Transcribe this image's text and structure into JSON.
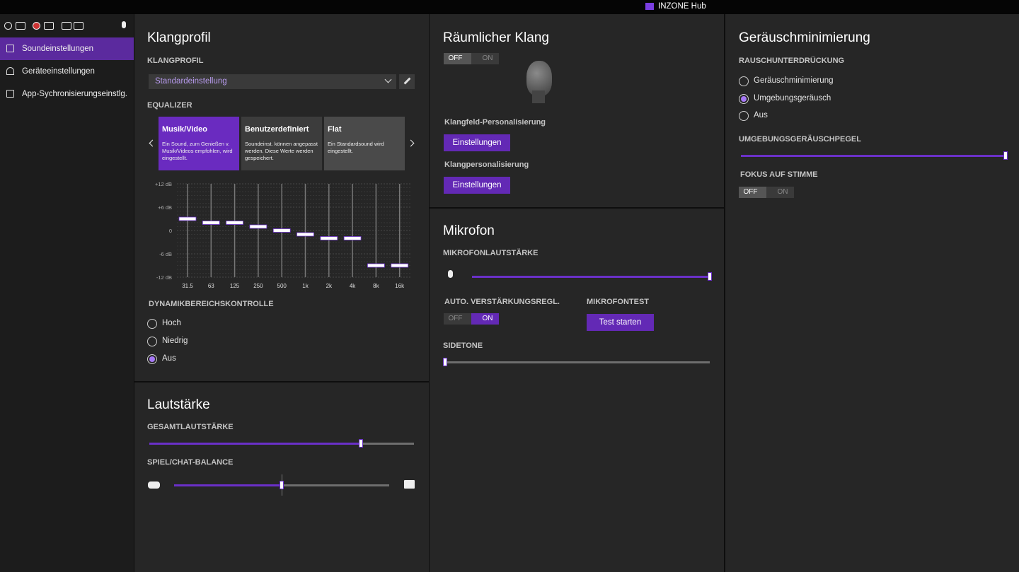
{
  "title_bar": {
    "app_name": "INZONE Hub"
  },
  "sidebar": {
    "items": [
      "Soundeinstellungen",
      "Geräteeinstellungen",
      "App-Sychronisierungseinstlg."
    ],
    "active": 0
  },
  "sound_profile": {
    "title": "Klangprofil",
    "profile_label": "KLANGPROFIL",
    "profile_value": "Standardeinstellung",
    "equalizer_label": "EQUALIZER",
    "presets": [
      {
        "name": "Musik/Video",
        "description": "Ein Sound, zum Genießen v. Musik/Videos empfohlen, wird eingestellt."
      },
      {
        "name": "Benutzerdefiniert",
        "description": "Soundeinst. können angepasst werden. Diese Werte werden gespeichert."
      },
      {
        "name": "Flat",
        "description": "Ein Standardsound wird eingestellt."
      }
    ],
    "active_preset": 0,
    "equalizer": {
      "bands": [
        "31.5",
        "63",
        "125",
        "250",
        "500",
        "1k",
        "2k",
        "4k",
        "8k",
        "16k"
      ],
      "values": [
        3,
        2,
        2,
        1,
        0,
        -1,
        -2,
        -2,
        -9,
        -9
      ],
      "ylim": [
        -12,
        12
      ],
      "yticks": [
        {
          "value": 12,
          "label": "+12 dB"
        },
        {
          "value": 6,
          "label": "+6 dB"
        },
        0,
        {
          "value": -6,
          "label": "-6 dB"
        },
        {
          "value": -12,
          "label": "-12 dB"
        }
      ]
    },
    "dynamic_range": {
      "label": "DYNAMIKBEREICHSKONTROLLE",
      "options": [
        "Hoch",
        "Niedrig",
        "Aus"
      ],
      "selected": 2
    }
  },
  "volume": {
    "title": "Lautstärke",
    "master_label": "GESAMTLAUTSTÄRKE",
    "master": 80,
    "balance_label": "SPIEL/CHAT-BALANCE",
    "balance": 50,
    "range": [
      0,
      100
    ]
  },
  "spatial": {
    "title": "Räumlicher Klang",
    "toggle": {
      "off": "OFF",
      "on": "ON",
      "state": false
    },
    "field_label": "Klangfeld-Personalisierung",
    "field_button": "Einstellungen",
    "sound_label": "Klangpersonalisierung",
    "sound_button": "Einstellungen"
  },
  "microphone": {
    "title": "Mikrofon",
    "volume_label": "MIKROFONLAUTSTÄRKE",
    "volume": 100,
    "agc_label": "AUTO. VERSTÄRKUNGSREGL.",
    "agc": {
      "off": "OFF",
      "on": "ON",
      "state": true
    },
    "test_label": "MIKROFONTEST",
    "test_button": "Test starten",
    "sidetone_label": "SIDETONE",
    "sidetone": 0,
    "range": [
      0,
      100
    ]
  },
  "noise": {
    "title": "Geräuschminimierung",
    "suppression_label": "RAUSCHUNTERDRÜCKUNG",
    "options": [
      "Geräuschminimierung",
      "Umgebungsgeräusch",
      "Aus"
    ],
    "selected": 1,
    "ambient_label": "UMGEBUNGSGERÄUSCHPEGEL",
    "ambient": 100,
    "range": [
      0,
      100
    ],
    "voice_focus_label": "FOKUS AUF STIMME",
    "voice_focus": {
      "off": "OFF",
      "on": "ON",
      "state": false
    }
  }
}
